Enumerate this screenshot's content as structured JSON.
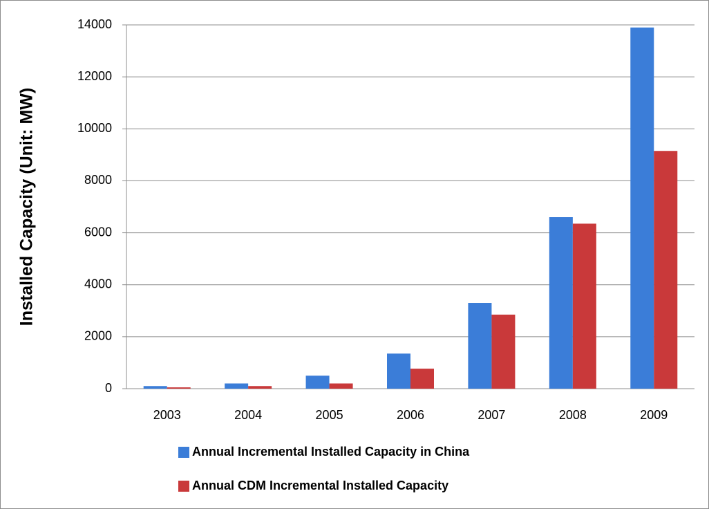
{
  "chart_data": {
    "type": "bar",
    "y_label": "Installed Capacity (Unit: MW)",
    "categories": [
      "2003",
      "2004",
      "2005",
      "2006",
      "2007",
      "2008",
      "2009"
    ],
    "series": [
      {
        "name": "Annual Incremental Installed Capacity in China",
        "color": "#3b7dd8",
        "values": [
          100,
          200,
          500,
          1350,
          3300,
          6600,
          13900
        ]
      },
      {
        "name": "Annual CDM Incremental Installed Capacity",
        "color": "#c9393a",
        "values": [
          50,
          100,
          200,
          770,
          2850,
          6350,
          9150
        ]
      }
    ],
    "ylim": [
      0,
      14000
    ],
    "yticks": [
      0,
      2000,
      4000,
      6000,
      8000,
      10000,
      12000,
      14000
    ],
    "grid": true
  }
}
